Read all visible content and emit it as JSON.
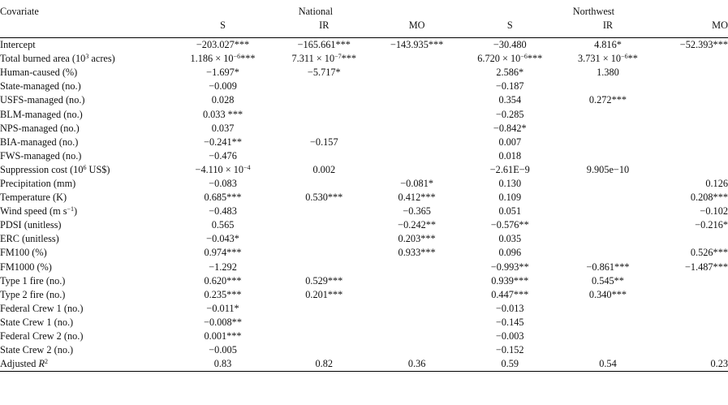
{
  "header": {
    "covariate": "Covariate",
    "group_national": "National",
    "group_northwest": "Northwest",
    "cols": [
      "S",
      "IR",
      "MO",
      "S",
      "IR",
      "MO"
    ]
  },
  "rows": [
    {
      "label": "Intercept",
      "vals": [
        "−203.027***",
        "−165.661***",
        "−143.935***",
        "−30.480",
        "4.816*",
        "−52.393***"
      ]
    },
    {
      "label_pre": "Total burned area (10",
      "label_sup": "3",
      "label_post": " acres)",
      "vals": [
        "1.186 × 10−6***",
        "7.311 × 10−7***",
        "",
        "6.720 × 10−6***",
        "3.731 × 10−6**",
        ""
      ]
    },
    {
      "label": "Human-caused (%)",
      "vals": [
        "−1.697*",
        "−5.717*",
        "",
        "2.586*",
        "1.380",
        ""
      ]
    },
    {
      "label": "State-managed (no.)",
      "vals": [
        "−0.009",
        "",
        "",
        "−0.187",
        "",
        ""
      ]
    },
    {
      "label": "USFS-managed (no.)",
      "vals": [
        "0.028",
        "",
        "",
        "0.354",
        "0.272***",
        ""
      ]
    },
    {
      "label": "BLM-managed (no.)",
      "vals": [
        "0.033 ***",
        "",
        "",
        "−0.285",
        "",
        ""
      ]
    },
    {
      "label": "NPS-managed (no.)",
      "vals": [
        "0.037",
        "",
        "",
        "−0.842*",
        "",
        ""
      ]
    },
    {
      "label": "BIA-managed (no.)",
      "vals": [
        "−0.241**",
        "−0.157",
        "",
        "0.007",
        "",
        ""
      ]
    },
    {
      "label": "FWS-managed (no.)",
      "vals": [
        "−0.476",
        "",
        "",
        "0.018",
        "",
        ""
      ]
    },
    {
      "label_pre": "Suppression cost (10",
      "label_sup": "6",
      "label_post": " US$)",
      "vals": [
        "−4.110 × 10−4",
        "0.002",
        "",
        "−2.61E−9",
        "9.905e−10",
        ""
      ]
    },
    {
      "label": "Precipitation (mm)",
      "vals": [
        "−0.083",
        "",
        "−0.081*",
        "0.130",
        "",
        "0.126"
      ]
    },
    {
      "label": "Temperature (K)",
      "vals": [
        "0.685***",
        "0.530***",
        "0.412***",
        "0.109",
        "",
        "0.208***"
      ]
    },
    {
      "label_pre": "Wind speed (m s",
      "label_sup": "−1",
      "label_post": ")",
      "vals": [
        "−0.483",
        "",
        "−0.365",
        "0.051",
        "",
        "−0.102"
      ]
    },
    {
      "label": "PDSI (unitless)",
      "vals": [
        "0.565",
        "",
        "−0.242**",
        "−0.576**",
        "",
        "−0.216*"
      ]
    },
    {
      "label": "ERC (unitless)",
      "vals": [
        "−0.043*",
        "",
        "0.203***",
        "0.035",
        "",
        ""
      ]
    },
    {
      "label": "FM100 (%)",
      "vals": [
        "0.974***",
        "",
        "0.933***",
        "0.096",
        "",
        "0.526***"
      ]
    },
    {
      "label": "FM1000 (%)",
      "vals": [
        "−1.292",
        "",
        "",
        "−0.993**",
        "−0.861***",
        "−1.487***"
      ]
    },
    {
      "label": "Type 1 fire (no.)",
      "vals": [
        "0.620***",
        "0.529***",
        "",
        "0.939***",
        "0.545**",
        ""
      ]
    },
    {
      "label": "Type 2 fire (no.)",
      "vals": [
        "0.235***",
        "0.201***",
        "",
        "0.447***",
        "0.340***",
        ""
      ]
    },
    {
      "label": "Federal Crew 1 (no.)",
      "vals": [
        "−0.011*",
        "",
        "",
        "−0.013",
        "",
        ""
      ]
    },
    {
      "label": "State Crew 1 (no.)",
      "vals": [
        "−0.008**",
        "",
        "",
        "−0.145",
        "",
        ""
      ]
    },
    {
      "label": "Federal Crew 2 (no.)",
      "vals": [
        "0.001***",
        "",
        "",
        "−0.003",
        "",
        ""
      ]
    },
    {
      "label": "State Crew 2 (no.)",
      "vals": [
        "−0.005",
        "",
        "",
        "−0.152",
        "",
        ""
      ]
    },
    {
      "label_pre": "Adjusted ",
      "label_ital": "R",
      "label_sup": "2",
      "vals": [
        "0.83",
        "0.82",
        "0.36",
        "0.59",
        "0.54",
        "0.23"
      ]
    }
  ]
}
